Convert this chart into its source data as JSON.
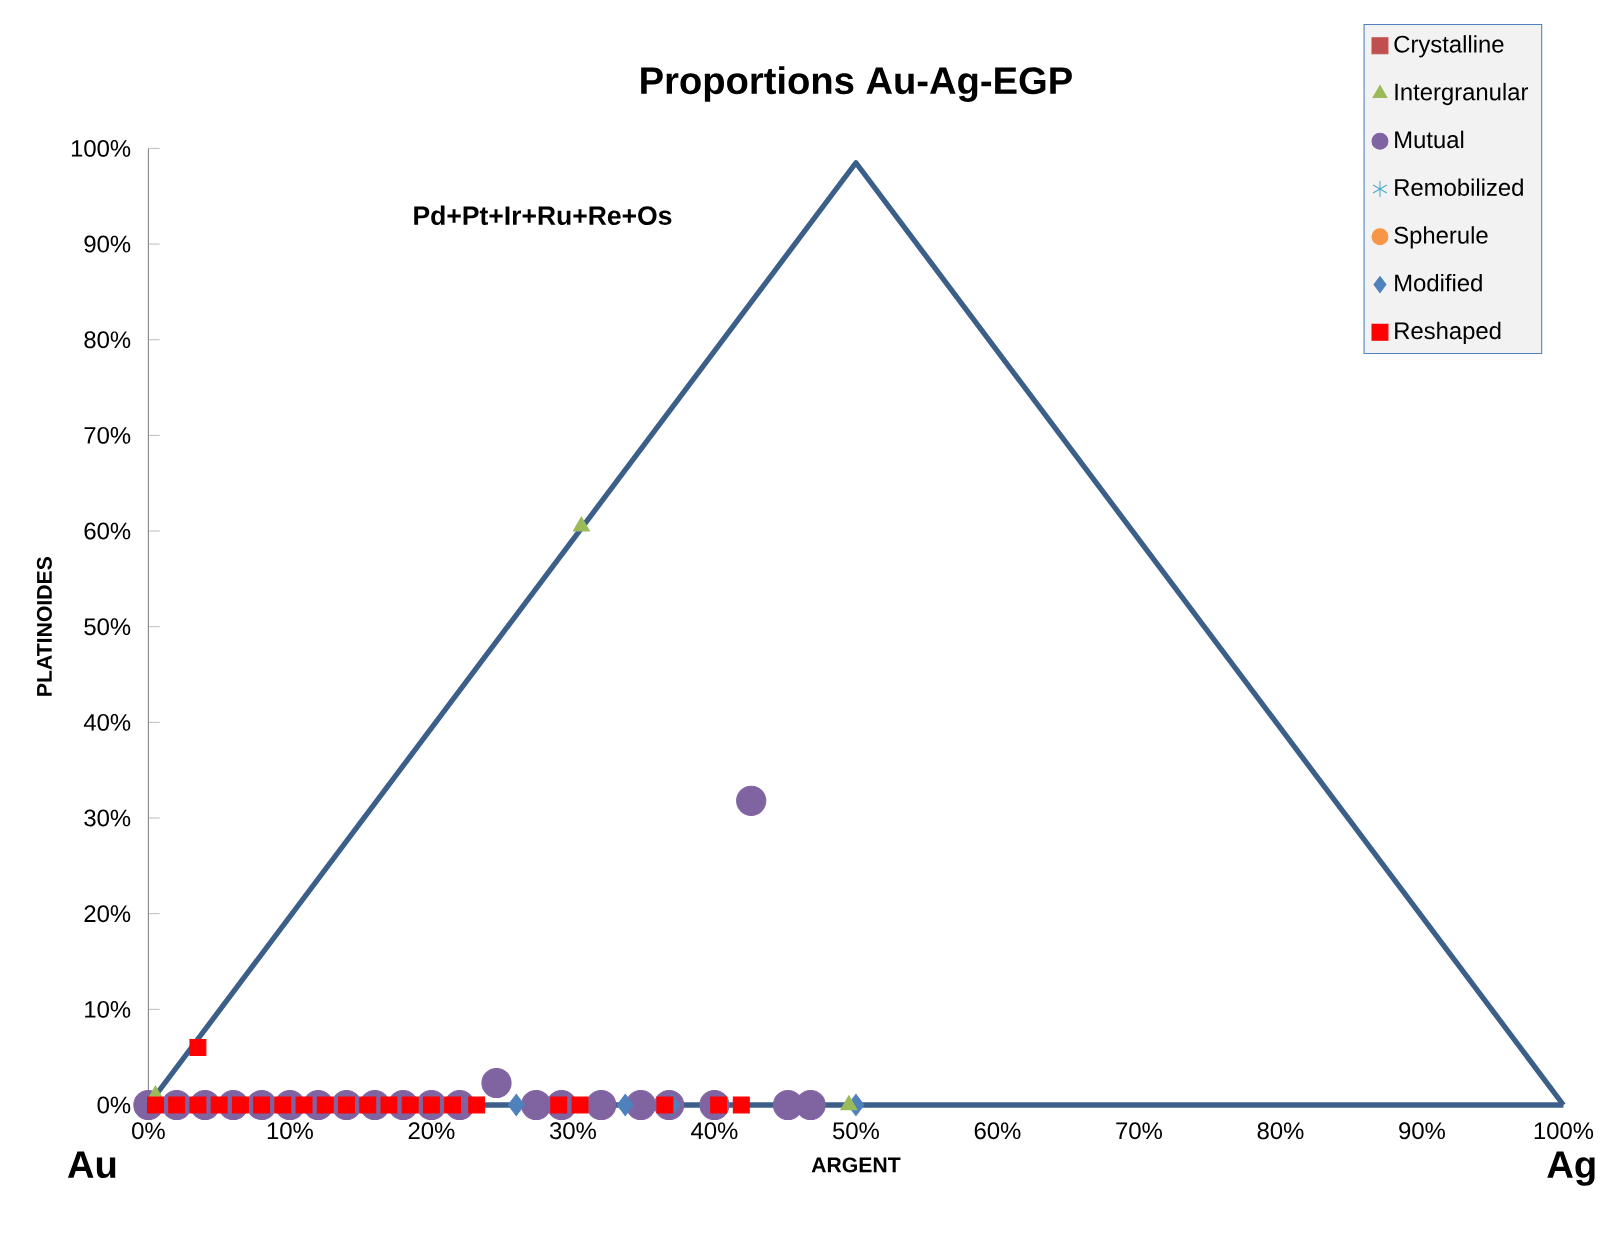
{
  "chart_data": {
    "type": "scatter",
    "title": "Proportions Au-Ag-EGP",
    "xlabel": "ARGENT",
    "ylabel": "PLATINOIDES",
    "annotations": [
      "Pd+Pt+Ir+Ru+Re+Os",
      "Au",
      "Ag"
    ],
    "xlim": [
      0,
      100
    ],
    "ylim": [
      0,
      100
    ],
    "xticks": [
      {
        "value": 0,
        "label": "0%"
      },
      {
        "value": 10,
        "label": "10%"
      },
      {
        "value": 20,
        "label": "20%"
      },
      {
        "value": 30,
        "label": "30%"
      },
      {
        "value": 40,
        "label": "40%"
      },
      {
        "value": 50,
        "label": "50%"
      },
      {
        "value": 60,
        "label": "60%"
      },
      {
        "value": 70,
        "label": "70%"
      },
      {
        "value": 80,
        "label": "80%"
      },
      {
        "value": 90,
        "label": "90%"
      },
      {
        "value": 100,
        "label": "100%"
      }
    ],
    "yticks": [
      {
        "value": 0,
        "label": "0%"
      },
      {
        "value": 10,
        "label": "10%"
      },
      {
        "value": 20,
        "label": "20%"
      },
      {
        "value": 30,
        "label": "30%"
      },
      {
        "value": 40,
        "label": "40%"
      },
      {
        "value": 50,
        "label": "50%"
      },
      {
        "value": 60,
        "label": "60%"
      },
      {
        "value": 70,
        "label": "70%"
      },
      {
        "value": 80,
        "label": "80%"
      },
      {
        "value": 90,
        "label": "90%"
      },
      {
        "value": 100,
        "label": "100%"
      }
    ],
    "grid": false,
    "legend": "top right",
    "series": [
      {
        "type": "line",
        "marker": "none",
        "color": "#3c5f8a",
        "x": [
          0,
          50,
          100
        ],
        "values": [
          0,
          98.5,
          0
        ]
      },
      {
        "type": "line",
        "marker": "none",
        "color": "#3c5f8a",
        "x": [
          0,
          100
        ],
        "values": [
          0,
          0
        ]
      },
      {
        "name": "Crystalline",
        "marker": "square",
        "color": "#c0504d"
      },
      {
        "name": "Intergranular",
        "marker": "triangle",
        "color": "#9bbb59",
        "x": [
          30.6,
          0.5,
          49.5
        ],
        "values": [
          60.5,
          1,
          0
        ]
      },
      {
        "name": "Mutual",
        "marker": "circle",
        "color": "#8064a2",
        "x": [
          0,
          2,
          4,
          6,
          8,
          10,
          12,
          14,
          16,
          18,
          20,
          22,
          24.6,
          27.4,
          29.2,
          32,
          34.8,
          36.8,
          40,
          42.6,
          45.2,
          46.8
        ],
        "values": [
          0,
          0,
          0,
          0,
          0,
          0,
          0,
          0,
          0,
          0,
          0,
          0,
          2.3,
          0,
          0,
          0,
          0,
          0,
          0,
          31.8,
          0,
          0
        ]
      },
      {
        "name": "Remobilized",
        "marker": "star",
        "color": "#4bacc6"
      },
      {
        "name": "Spherule",
        "marker": "circle",
        "color": "#f79646"
      },
      {
        "name": "Modified",
        "marker": "diamond",
        "color": "#4f81bd",
        "x": [
          26,
          33.7,
          37,
          50
        ],
        "values": [
          0,
          0,
          0,
          0
        ]
      },
      {
        "name": "Reshaped",
        "marker": "square",
        "color": "#ff0000",
        "x": [
          0.5,
          2,
          3.5,
          5,
          6.5,
          8,
          9.5,
          11,
          12.5,
          14,
          15.5,
          17,
          18.5,
          20,
          21.5,
          23.2,
          29,
          30.5,
          36.5,
          40.3,
          41.9,
          3.5
        ],
        "values": [
          0,
          0,
          0,
          0,
          0,
          0,
          0,
          0,
          0,
          0,
          0,
          0,
          0,
          0,
          0,
          0,
          0,
          0,
          0,
          0,
          0,
          6
        ]
      }
    ]
  }
}
